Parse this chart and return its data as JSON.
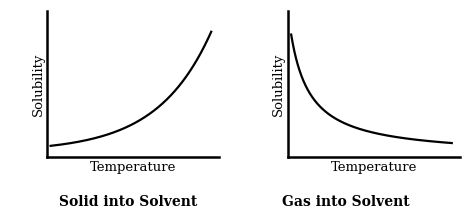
{
  "background_color": "#ffffff",
  "left_title": "Solid into Solvent",
  "right_title": "Gas into Solvent",
  "ylabel": "Solubility",
  "xlabel": "Temperature",
  "curve_color": "#000000",
  "axis_color": "#000000",
  "line_width": 1.6,
  "title_fontsize": 10,
  "label_fontsize": 9.5,
  "title_fontweight": "bold"
}
